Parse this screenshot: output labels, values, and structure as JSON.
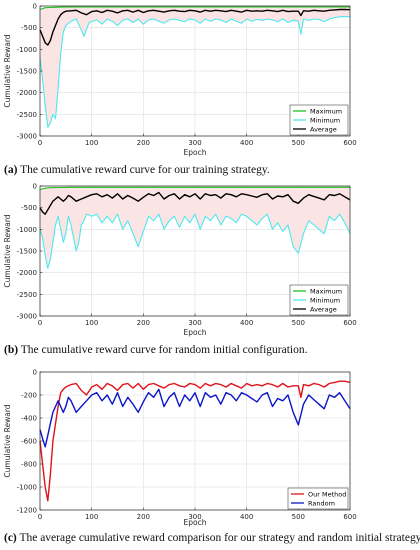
{
  "chart_data": [
    {
      "type": "line",
      "id": "a",
      "caption_label": "(a)",
      "caption_text": "The cumulative reward curve for our training strategy.",
      "xlabel": "Epoch",
      "ylabel": "Cumulative Reward",
      "xlim": [
        0,
        600
      ],
      "ylim": [
        -3000,
        0
      ],
      "xticks": [
        0,
        100,
        200,
        300,
        400,
        500,
        600
      ],
      "yticks": [
        0,
        -500,
        -1000,
        -1500,
        -2000,
        -2500,
        -3000
      ],
      "grid": true,
      "legend": "bottom-right",
      "fill_between": [
        "Maximum",
        "Minimum"
      ],
      "fill_color": "#fbe4e4",
      "series": [
        {
          "name": "Maximum",
          "color": "#1ec31e",
          "x": [
            0,
            10,
            20,
            30,
            40,
            60,
            100,
            200,
            300,
            400,
            500,
            600
          ],
          "y": [
            -80,
            -40,
            -35,
            -30,
            -25,
            -20,
            -20,
            -20,
            -20,
            -20,
            -20,
            -20
          ]
        },
        {
          "name": "Minimum",
          "color": "#4fe8ee",
          "x": [
            0,
            5,
            10,
            15,
            20,
            25,
            30,
            35,
            40,
            45,
            50,
            60,
            70,
            80,
            85,
            95,
            110,
            120,
            130,
            140,
            150,
            160,
            170,
            180,
            190,
            200,
            210,
            220,
            230,
            240,
            250,
            260,
            270,
            280,
            290,
            300,
            310,
            320,
            330,
            340,
            350,
            360,
            370,
            380,
            390,
            400,
            410,
            420,
            430,
            440,
            450,
            460,
            470,
            480,
            490,
            500,
            505,
            510,
            520,
            530,
            540,
            550,
            560,
            570,
            580,
            590,
            600
          ],
          "y": [
            -1200,
            -1700,
            -2300,
            -2800,
            -2700,
            -2500,
            -2600,
            -1900,
            -1100,
            -600,
            -450,
            -350,
            -300,
            -550,
            -700,
            -380,
            -320,
            -420,
            -300,
            -350,
            -450,
            -330,
            -300,
            -380,
            -300,
            -420,
            -320,
            -300,
            -350,
            -400,
            -320,
            -300,
            -330,
            -360,
            -300,
            -320,
            -400,
            -300,
            -350,
            -300,
            -320,
            -380,
            -300,
            -350,
            -400,
            -300,
            -350,
            -310,
            -330,
            -300,
            -320,
            -360,
            -300,
            -380,
            -330,
            -350,
            -650,
            -300,
            -330,
            -300,
            -310,
            -360,
            -300,
            -270,
            -250,
            -240,
            -250
          ]
        },
        {
          "name": "Average",
          "color": "#000000",
          "x": [
            0,
            5,
            10,
            15,
            20,
            25,
            30,
            35,
            40,
            45,
            50,
            60,
            70,
            80,
            90,
            100,
            110,
            120,
            130,
            140,
            150,
            160,
            170,
            180,
            190,
            200,
            210,
            220,
            230,
            240,
            250,
            260,
            270,
            280,
            290,
            300,
            310,
            320,
            330,
            340,
            350,
            360,
            370,
            380,
            390,
            400,
            410,
            420,
            430,
            440,
            450,
            460,
            470,
            480,
            490,
            500,
            505,
            510,
            520,
            530,
            540,
            550,
            560,
            570,
            580,
            590,
            600
          ],
          "y": [
            -550,
            -700,
            -850,
            -900,
            -800,
            -600,
            -450,
            -300,
            -200,
            -150,
            -120,
            -110,
            -100,
            -160,
            -200,
            -130,
            -110,
            -150,
            -100,
            -120,
            -160,
            -110,
            -100,
            -140,
            -100,
            -150,
            -110,
            -100,
            -120,
            -140,
            -110,
            -100,
            -120,
            -130,
            -100,
            -110,
            -140,
            -100,
            -120,
            -100,
            -110,
            -130,
            -100,
            -120,
            -140,
            -100,
            -120,
            -110,
            -120,
            -100,
            -110,
            -130,
            -100,
            -130,
            -120,
            -120,
            -220,
            -110,
            -120,
            -100,
            -110,
            -120,
            -100,
            -90,
            -80,
            -80,
            -85
          ]
        }
      ]
    },
    {
      "type": "line",
      "id": "b",
      "caption_label": "(b)",
      "caption_text": "The cumulative reward curve for random initial configuration.",
      "xlabel": "Epoch",
      "ylabel": "Cumulative Reward",
      "xlim": [
        0,
        600
      ],
      "ylim": [
        -3000,
        0
      ],
      "xticks": [
        0,
        100,
        200,
        300,
        400,
        500,
        600
      ],
      "yticks": [
        0,
        -500,
        -1000,
        -1500,
        -2000,
        -2500,
        -3000
      ],
      "grid": true,
      "legend": "bottom-right",
      "fill_between": [
        "Maximum",
        "Minimum"
      ],
      "fill_color": "#fbe4e4",
      "series": [
        {
          "name": "Maximum",
          "color": "#1ec31e",
          "x": [
            0,
            10,
            20,
            40,
            60,
            100,
            150,
            200,
            300,
            400,
            500,
            600
          ],
          "y": [
            -80,
            -50,
            -40,
            -35,
            -30,
            -30,
            -30,
            -30,
            -30,
            -30,
            -30,
            -30
          ]
        },
        {
          "name": "Minimum",
          "color": "#4fe8ee",
          "x": [
            0,
            5,
            10,
            15,
            20,
            25,
            30,
            35,
            40,
            45,
            50,
            55,
            60,
            65,
            70,
            75,
            80,
            85,
            90,
            100,
            110,
            120,
            130,
            140,
            150,
            160,
            170,
            180,
            190,
            200,
            210,
            220,
            230,
            240,
            250,
            260,
            270,
            280,
            290,
            300,
            310,
            320,
            330,
            340,
            350,
            360,
            370,
            380,
            390,
            400,
            410,
            420,
            430,
            440,
            450,
            460,
            470,
            480,
            490,
            500,
            510,
            520,
            530,
            540,
            550,
            560,
            570,
            580,
            590,
            600
          ],
          "y": [
            -1000,
            -1200,
            -1600,
            -1900,
            -1700,
            -1300,
            -900,
            -700,
            -1000,
            -1300,
            -1100,
            -700,
            -900,
            -1200,
            -1500,
            -1300,
            -900,
            -800,
            -650,
            -700,
            -650,
            -850,
            -700,
            -850,
            -650,
            -1000,
            -800,
            -1100,
            -1400,
            -1050,
            -700,
            -800,
            -650,
            -1000,
            -800,
            -700,
            -950,
            -700,
            -850,
            -650,
            -1000,
            -700,
            -800,
            -650,
            -900,
            -700,
            -750,
            -850,
            -650,
            -700,
            -800,
            -900,
            -750,
            -650,
            -1000,
            -850,
            -1050,
            -900,
            -1400,
            -1550,
            -1100,
            -800,
            -900,
            -1000,
            -1100,
            -700,
            -800,
            -650,
            -850,
            -1100
          ]
        },
        {
          "name": "Average",
          "color": "#000000",
          "x": [
            0,
            5,
            10,
            15,
            20,
            25,
            30,
            35,
            40,
            45,
            50,
            55,
            60,
            70,
            80,
            90,
            100,
            110,
            120,
            130,
            140,
            150,
            160,
            170,
            180,
            190,
            200,
            210,
            220,
            230,
            240,
            250,
            260,
            270,
            280,
            290,
            300,
            310,
            320,
            330,
            340,
            350,
            360,
            370,
            380,
            390,
            400,
            410,
            420,
            430,
            440,
            450,
            460,
            470,
            480,
            490,
            500,
            510,
            520,
            530,
            540,
            550,
            560,
            570,
            580,
            590,
            600
          ],
          "y": [
            -500,
            -600,
            -650,
            -550,
            -450,
            -350,
            -300,
            -250,
            -300,
            -350,
            -300,
            -220,
            -250,
            -350,
            -300,
            -250,
            -200,
            -180,
            -250,
            -200,
            -280,
            -180,
            -300,
            -220,
            -280,
            -350,
            -260,
            -180,
            -220,
            -150,
            -300,
            -220,
            -180,
            -300,
            -200,
            -250,
            -180,
            -300,
            -180,
            -220,
            -200,
            -280,
            -180,
            -200,
            -250,
            -180,
            -200,
            -230,
            -260,
            -200,
            -180,
            -300,
            -230,
            -250,
            -200,
            -350,
            -400,
            -280,
            -200,
            -240,
            -280,
            -320,
            -200,
            -220,
            -180,
            -250,
            -320
          ]
        }
      ]
    },
    {
      "type": "line",
      "id": "c",
      "caption_label": "(c)",
      "caption_text": "The average cumulative reward comparison for our strategy and random initial strategy.",
      "xlabel": "Epoch",
      "ylabel": "Cumulative Reward",
      "xlim": [
        0,
        600
      ],
      "ylim": [
        -1200,
        0
      ],
      "xticks": [
        0,
        100,
        200,
        300,
        400,
        500,
        600
      ],
      "yticks": [
        0,
        -200,
        -400,
        -600,
        -800,
        -1000,
        -1200
      ],
      "grid": true,
      "legend": "bottom-right",
      "series": [
        {
          "name": "Our Method",
          "color": "#e0131b",
          "x": [
            0,
            5,
            10,
            15,
            20,
            25,
            30,
            35,
            40,
            45,
            50,
            60,
            70,
            80,
            90,
            100,
            110,
            120,
            130,
            140,
            150,
            160,
            170,
            180,
            190,
            200,
            210,
            220,
            230,
            240,
            250,
            260,
            270,
            280,
            290,
            300,
            310,
            320,
            330,
            340,
            350,
            360,
            370,
            380,
            390,
            400,
            410,
            420,
            430,
            440,
            450,
            460,
            470,
            480,
            490,
            500,
            505,
            510,
            520,
            530,
            540,
            550,
            560,
            570,
            580,
            590,
            600
          ],
          "y": [
            -600,
            -800,
            -1000,
            -1120,
            -900,
            -600,
            -450,
            -300,
            -180,
            -150,
            -130,
            -110,
            -100,
            -160,
            -200,
            -130,
            -110,
            -150,
            -100,
            -120,
            -160,
            -110,
            -100,
            -140,
            -100,
            -150,
            -110,
            -100,
            -120,
            -140,
            -110,
            -100,
            -120,
            -130,
            -100,
            -110,
            -140,
            -100,
            -120,
            -100,
            -110,
            -130,
            -100,
            -120,
            -140,
            -100,
            -120,
            -110,
            -120,
            -100,
            -110,
            -130,
            -100,
            -130,
            -120,
            -120,
            -220,
            -110,
            -120,
            -100,
            -110,
            -130,
            -100,
            -90,
            -80,
            -80,
            -90
          ]
        },
        {
          "name": "Random",
          "color": "#0b16c8",
          "x": [
            0,
            5,
            10,
            15,
            20,
            25,
            30,
            35,
            40,
            45,
            50,
            55,
            60,
            70,
            80,
            90,
            100,
            110,
            120,
            130,
            140,
            150,
            160,
            170,
            180,
            190,
            200,
            210,
            220,
            230,
            240,
            250,
            260,
            270,
            280,
            290,
            300,
            310,
            320,
            330,
            340,
            350,
            360,
            370,
            380,
            390,
            400,
            410,
            420,
            430,
            440,
            450,
            460,
            470,
            480,
            490,
            500,
            510,
            520,
            530,
            540,
            550,
            560,
            570,
            580,
            590,
            600
          ],
          "y": [
            -500,
            -580,
            -650,
            -550,
            -450,
            -350,
            -300,
            -250,
            -300,
            -350,
            -300,
            -220,
            -250,
            -350,
            -300,
            -250,
            -200,
            -180,
            -250,
            -200,
            -280,
            -180,
            -300,
            -220,
            -280,
            -350,
            -260,
            -180,
            -220,
            -150,
            -300,
            -220,
            -180,
            -300,
            -200,
            -250,
            -180,
            -300,
            -180,
            -220,
            -200,
            -280,
            -180,
            -200,
            -250,
            -180,
            -200,
            -230,
            -260,
            -200,
            -180,
            -300,
            -230,
            -250,
            -200,
            -350,
            -460,
            -280,
            -200,
            -240,
            -280,
            -320,
            -200,
            -220,
            -180,
            -250,
            -320
          ]
        }
      ]
    }
  ]
}
